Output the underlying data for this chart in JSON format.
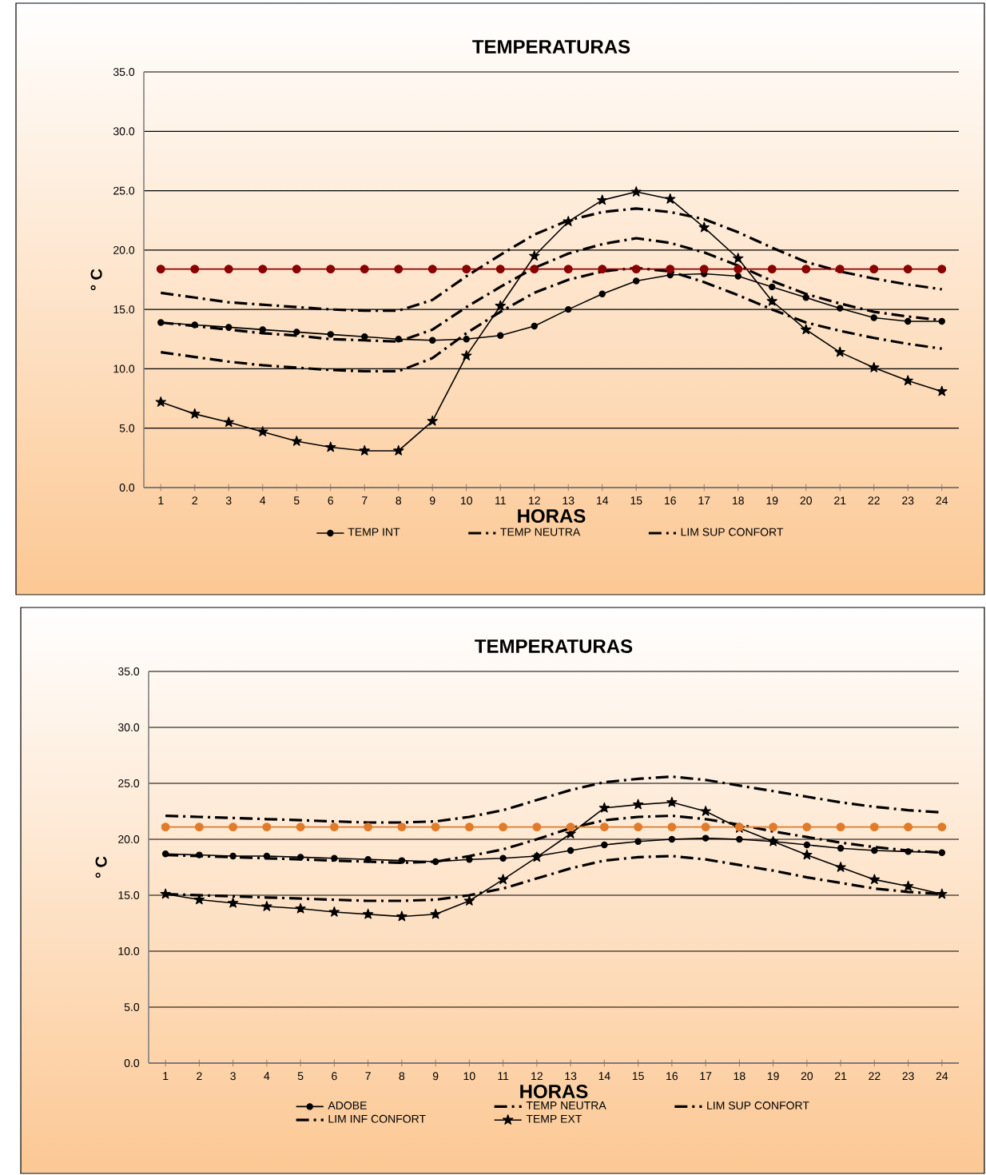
{
  "chart_data": [
    {
      "type": "line",
      "title": "TEMPERATURAS",
      "xlabel": "HORAS",
      "ylabel": "° C",
      "categories": [
        "1",
        "2",
        "3",
        "4",
        "5",
        "6",
        "7",
        "8",
        "9",
        "10",
        "11",
        "12",
        "13",
        "14",
        "15",
        "16",
        "17",
        "18",
        "19",
        "20",
        "21",
        "22",
        "23",
        "24"
      ],
      "ylim": [
        0,
        35
      ],
      "yticks": [
        {
          "value": 0,
          "label": "0.0"
        },
        {
          "value": 5,
          "label": "5.0"
        },
        {
          "value": 10,
          "label": "10.0"
        },
        {
          "value": 15,
          "label": "15.0"
        },
        {
          "value": 20,
          "label": "20.0"
        },
        {
          "value": 25,
          "label": "25.0"
        },
        {
          "value": 30,
          "label": "30.0"
        },
        {
          "value": 35,
          "label": "35.0"
        }
      ],
      "grid": "y",
      "legend": "bottom",
      "series": [
        {
          "name": "TEMP INT",
          "color": "#000000",
          "marker": "circle",
          "line_style": "solid",
          "values": [
            13.9,
            13.7,
            13.5,
            13.3,
            13.1,
            12.9,
            12.7,
            12.5,
            12.4,
            12.5,
            12.8,
            13.6,
            15,
            16.3,
            17.4,
            17.9,
            18,
            17.8,
            16.9,
            16,
            15.1,
            14.3,
            14,
            14
          ]
        },
        {
          "name": "TEMP NEUTRA",
          "color": "#000000",
          "marker": "none",
          "line_style": "dashed",
          "values": [
            13.9,
            13.6,
            13.3,
            13,
            12.8,
            12.5,
            12.4,
            12.3,
            13.3,
            15.2,
            16.9,
            18.5,
            19.7,
            20.5,
            21,
            20.6,
            19.8,
            18.7,
            17.4,
            16.3,
            15.5,
            14.8,
            14.4,
            14.1
          ]
        },
        {
          "name": "LIM SUP CONFORT",
          "color": "#000000",
          "marker": "none",
          "line_style": "dashed",
          "values": [
            16.4,
            16,
            15.6,
            15.4,
            15.2,
            15,
            14.9,
            14.9,
            15.8,
            17.8,
            19.6,
            21.3,
            22.5,
            23.2,
            23.5,
            23.2,
            22.6,
            21.5,
            20.2,
            19,
            18.2,
            17.6,
            17.1,
            16.7
          ]
        },
        {
          "color": "#000000",
          "marker": "none",
          "line_style": "dashed",
          "values": [
            11.4,
            11,
            10.6,
            10.3,
            10.1,
            9.9,
            9.8,
            9.8,
            10.9,
            13,
            14.8,
            16.4,
            17.5,
            18.2,
            18.5,
            18.2,
            17.3,
            16.2,
            15,
            13.9,
            13.2,
            12.6,
            12.1,
            11.7
          ]
        },
        {
          "color": "#000000",
          "marker": "star",
          "line_style": "solid",
          "values": [
            7.2,
            6.2,
            5.5,
            4.7,
            3.9,
            3.4,
            3.1,
            3.1,
            5.6,
            11.1,
            15.3,
            19.5,
            22.4,
            24.2,
            24.9,
            24.3,
            21.9,
            19.3,
            15.7,
            13.3,
            11.4,
            10.1,
            9,
            8.1
          ]
        },
        {
          "color": "#8b0000",
          "marker": "circle",
          "line_style": "solid",
          "values": [
            18.4,
            18.4,
            18.4,
            18.4,
            18.4,
            18.4,
            18.4,
            18.4,
            18.4,
            18.4,
            18.4,
            18.4,
            18.4,
            18.4,
            18.4,
            18.4,
            18.4,
            18.4,
            18.4,
            18.4,
            18.4,
            18.4,
            18.4,
            18.4
          ]
        }
      ]
    },
    {
      "type": "line",
      "title": "TEMPERATURAS",
      "xlabel": "HORAS",
      "ylabel": "° C",
      "categories": [
        "1",
        "2",
        "3",
        "4",
        "5",
        "6",
        "7",
        "8",
        "9",
        "10",
        "11",
        "12",
        "13",
        "14",
        "15",
        "16",
        "17",
        "18",
        "19",
        "20",
        "21",
        "22",
        "23",
        "24"
      ],
      "ylim": [
        0,
        35
      ],
      "yticks": [
        {
          "value": 0,
          "label": "0.0"
        },
        {
          "value": 5,
          "label": "5.0"
        },
        {
          "value": 10,
          "label": "10.0"
        },
        {
          "value": 15,
          "label": "15.0"
        },
        {
          "value": 20,
          "label": "20.0"
        },
        {
          "value": 25,
          "label": "25.0"
        },
        {
          "value": 30,
          "label": "30.0"
        },
        {
          "value": 35,
          "label": "35.0"
        }
      ],
      "grid": "y",
      "legend": "bottom",
      "series": [
        {
          "name": "ADOBE",
          "color": "#000000",
          "marker": "circle",
          "line_style": "solid",
          "values": [
            18.7,
            18.6,
            18.5,
            18.5,
            18.4,
            18.3,
            18.2,
            18.1,
            18,
            18.2,
            18.3,
            18.5,
            19,
            19.5,
            19.8,
            20,
            20.1,
            20,
            19.8,
            19.5,
            19.2,
            19,
            18.9,
            18.8
          ]
        },
        {
          "name": "TEMP NEUTRA",
          "color": "#000000",
          "marker": "none",
          "line_style": "dashed",
          "values": [
            18.6,
            18.5,
            18.4,
            18.3,
            18.2,
            18.1,
            18,
            17.9,
            18,
            18.5,
            19.1,
            20,
            21,
            21.7,
            22,
            22.1,
            21.8,
            21.3,
            20.7,
            20.2,
            19.7,
            19.3,
            19,
            18.8
          ]
        },
        {
          "name": "LIM SUP CONFORT",
          "color": "#000000",
          "marker": "none",
          "line_style": "dashed",
          "values": [
            22.1,
            22,
            21.9,
            21.8,
            21.7,
            21.6,
            21.5,
            21.5,
            21.6,
            22,
            22.6,
            23.5,
            24.4,
            25.1,
            25.4,
            25.6,
            25.3,
            24.8,
            24.3,
            23.8,
            23.3,
            22.9,
            22.6,
            22.4
          ]
        },
        {
          "name": "LIM INF CONFORT",
          "color": "#000000",
          "marker": "none",
          "line_style": "dashed",
          "values": [
            15.1,
            15,
            14.9,
            14.8,
            14.7,
            14.6,
            14.5,
            14.5,
            14.6,
            15,
            15.6,
            16.5,
            17.4,
            18.1,
            18.4,
            18.5,
            18.2,
            17.7,
            17.2,
            16.6,
            16.1,
            15.6,
            15.3,
            15.1
          ]
        },
        {
          "name": "TEMP EXT",
          "color": "#000000",
          "marker": "star",
          "line_style": "solid",
          "values": [
            15.1,
            14.6,
            14.3,
            14,
            13.8,
            13.5,
            13.3,
            13.1,
            13.3,
            14.5,
            16.4,
            18.4,
            20.5,
            22.8,
            23.1,
            23.3,
            22.5,
            21,
            19.8,
            18.6,
            17.5,
            16.4,
            15.8,
            15.1
          ]
        },
        {
          "color": "#e07b2a",
          "marker": "circle",
          "line_style": "solid",
          "values": [
            21.1,
            21.1,
            21.1,
            21.1,
            21.1,
            21.1,
            21.1,
            21.1,
            21.1,
            21.1,
            21.1,
            21.1,
            21.1,
            21.1,
            21.1,
            21.1,
            21.1,
            21.1,
            21.1,
            21.1,
            21.1,
            21.1,
            21.1,
            21.1
          ]
        }
      ]
    }
  ]
}
